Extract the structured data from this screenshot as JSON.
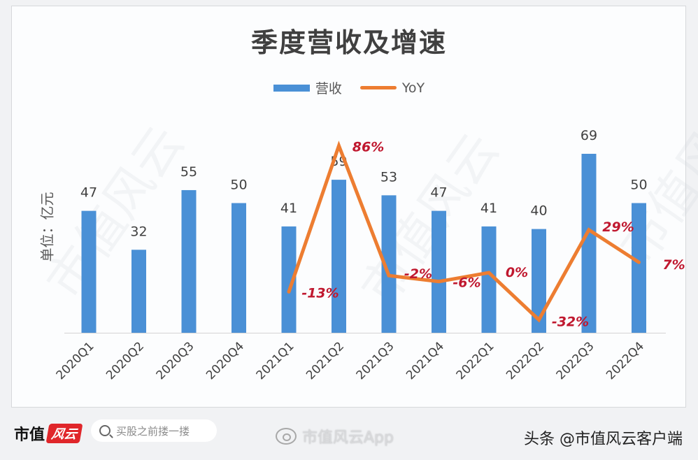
{
  "chart_data": {
    "type": "bar+line",
    "title": "季度营收及增速",
    "xlabel": "",
    "ylabel": "单位：亿元",
    "categories": [
      "2020Q1",
      "2020Q2",
      "2020Q3",
      "2020Q4",
      "2021Q1",
      "2021Q2",
      "2021Q3",
      "2021Q4",
      "2022Q1",
      "2022Q2",
      "2022Q3",
      "2022Q4"
    ],
    "series": [
      {
        "name": "营收",
        "type": "bar",
        "color": "#4a90d6",
        "values": [
          47,
          32,
          55,
          50,
          41,
          59,
          53,
          47,
          41,
          40,
          69,
          50
        ]
      },
      {
        "name": "YoY",
        "type": "line",
        "color": "#ed7d31",
        "unit": "%",
        "values": [
          null,
          null,
          null,
          null,
          -13,
          86,
          -2,
          -6,
          0,
          -32,
          29,
          7
        ],
        "labels": [
          "",
          "",
          "",
          "",
          "-13%",
          "86%",
          "-2%",
          "-6%",
          "0%",
          "-32%",
          "29%",
          "7%"
        ]
      }
    ],
    "legend": {
      "position": "top",
      "entries": [
        "营收",
        "YoY"
      ]
    },
    "grid": false,
    "axis_labels_rotation": -45,
    "label_color": "#c0182f"
  },
  "header": {
    "title": "季度营收及增速"
  },
  "legend": {
    "bar_label": "营收",
    "line_label": "YoY"
  },
  "axis": {
    "y_label": "单位：亿元"
  },
  "footer": {
    "logo_text": "市值",
    "logo_badge": "风云",
    "search_placeholder": "买股之前搂一搂",
    "app_watermark": "市值风云App",
    "source": "头条 @市值风云客户端"
  },
  "watermark": "市值风云"
}
